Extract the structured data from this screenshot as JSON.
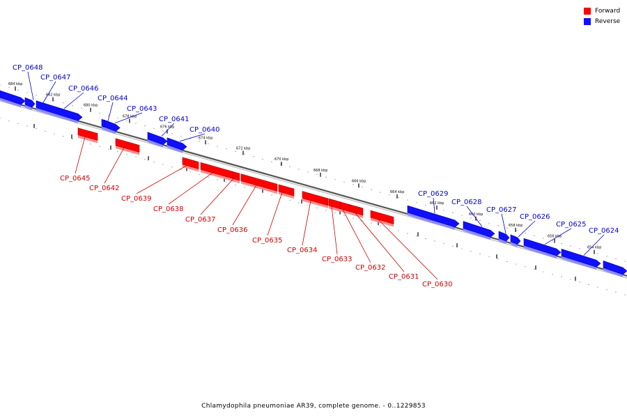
{
  "colors": {
    "forward": "#ff0000",
    "reverse": "#1010ff",
    "forward_label": "#cc0000",
    "reverse_label": "#0000cc",
    "backbone": "#555555"
  },
  "legend": [
    {
      "label": "Forward",
      "color": "#ff0000"
    },
    {
      "label": "Reverse",
      "color": "#1010ff"
    }
  ],
  "footer": "Chlamydophila pneumoniae AR39, complete genome. - 0..1229853",
  "ticks": [
    "684 kbp",
    "682 kbp",
    "680 kbp",
    "678 kbp",
    "676 kbp",
    "674 kbp",
    "672 kbp",
    "670 kbp",
    "668 kbp",
    "666 kbp",
    "664 kbp",
    "662 kbp",
    "660 kbp",
    "658 kbp",
    "656 kbp",
    "654 kbp"
  ],
  "genes": [
    {
      "id": "CP_0648",
      "strand": "reverse"
    },
    {
      "id": "CP_0647",
      "strand": "reverse"
    },
    {
      "id": "CP_0646",
      "strand": "reverse"
    },
    {
      "id": "CP_0645",
      "strand": "forward"
    },
    {
      "id": "CP_0644",
      "strand": "reverse"
    },
    {
      "id": "CP_0643",
      "strand": "reverse"
    },
    {
      "id": "CP_0642",
      "strand": "forward"
    },
    {
      "id": "CP_0641",
      "strand": "reverse"
    },
    {
      "id": "CP_0640",
      "strand": "reverse"
    },
    {
      "id": "CP_0639",
      "strand": "forward"
    },
    {
      "id": "CP_0638",
      "strand": "forward"
    },
    {
      "id": "CP_0637",
      "strand": "forward"
    },
    {
      "id": "CP_0636",
      "strand": "forward"
    },
    {
      "id": "CP_0635",
      "strand": "forward"
    },
    {
      "id": "CP_0634",
      "strand": "forward"
    },
    {
      "id": "CP_0633",
      "strand": "forward"
    },
    {
      "id": "CP_0632",
      "strand": "forward"
    },
    {
      "id": "CP_0631",
      "strand": "forward"
    },
    {
      "id": "CP_0630",
      "strand": "forward"
    },
    {
      "id": "CP_0629",
      "strand": "reverse"
    },
    {
      "id": "CP_0628",
      "strand": "reverse"
    },
    {
      "id": "CP_0627",
      "strand": "reverse"
    },
    {
      "id": "CP_0626",
      "strand": "reverse"
    },
    {
      "id": "CP_0625",
      "strand": "reverse"
    },
    {
      "id": "CP_0624",
      "strand": "reverse"
    }
  ]
}
